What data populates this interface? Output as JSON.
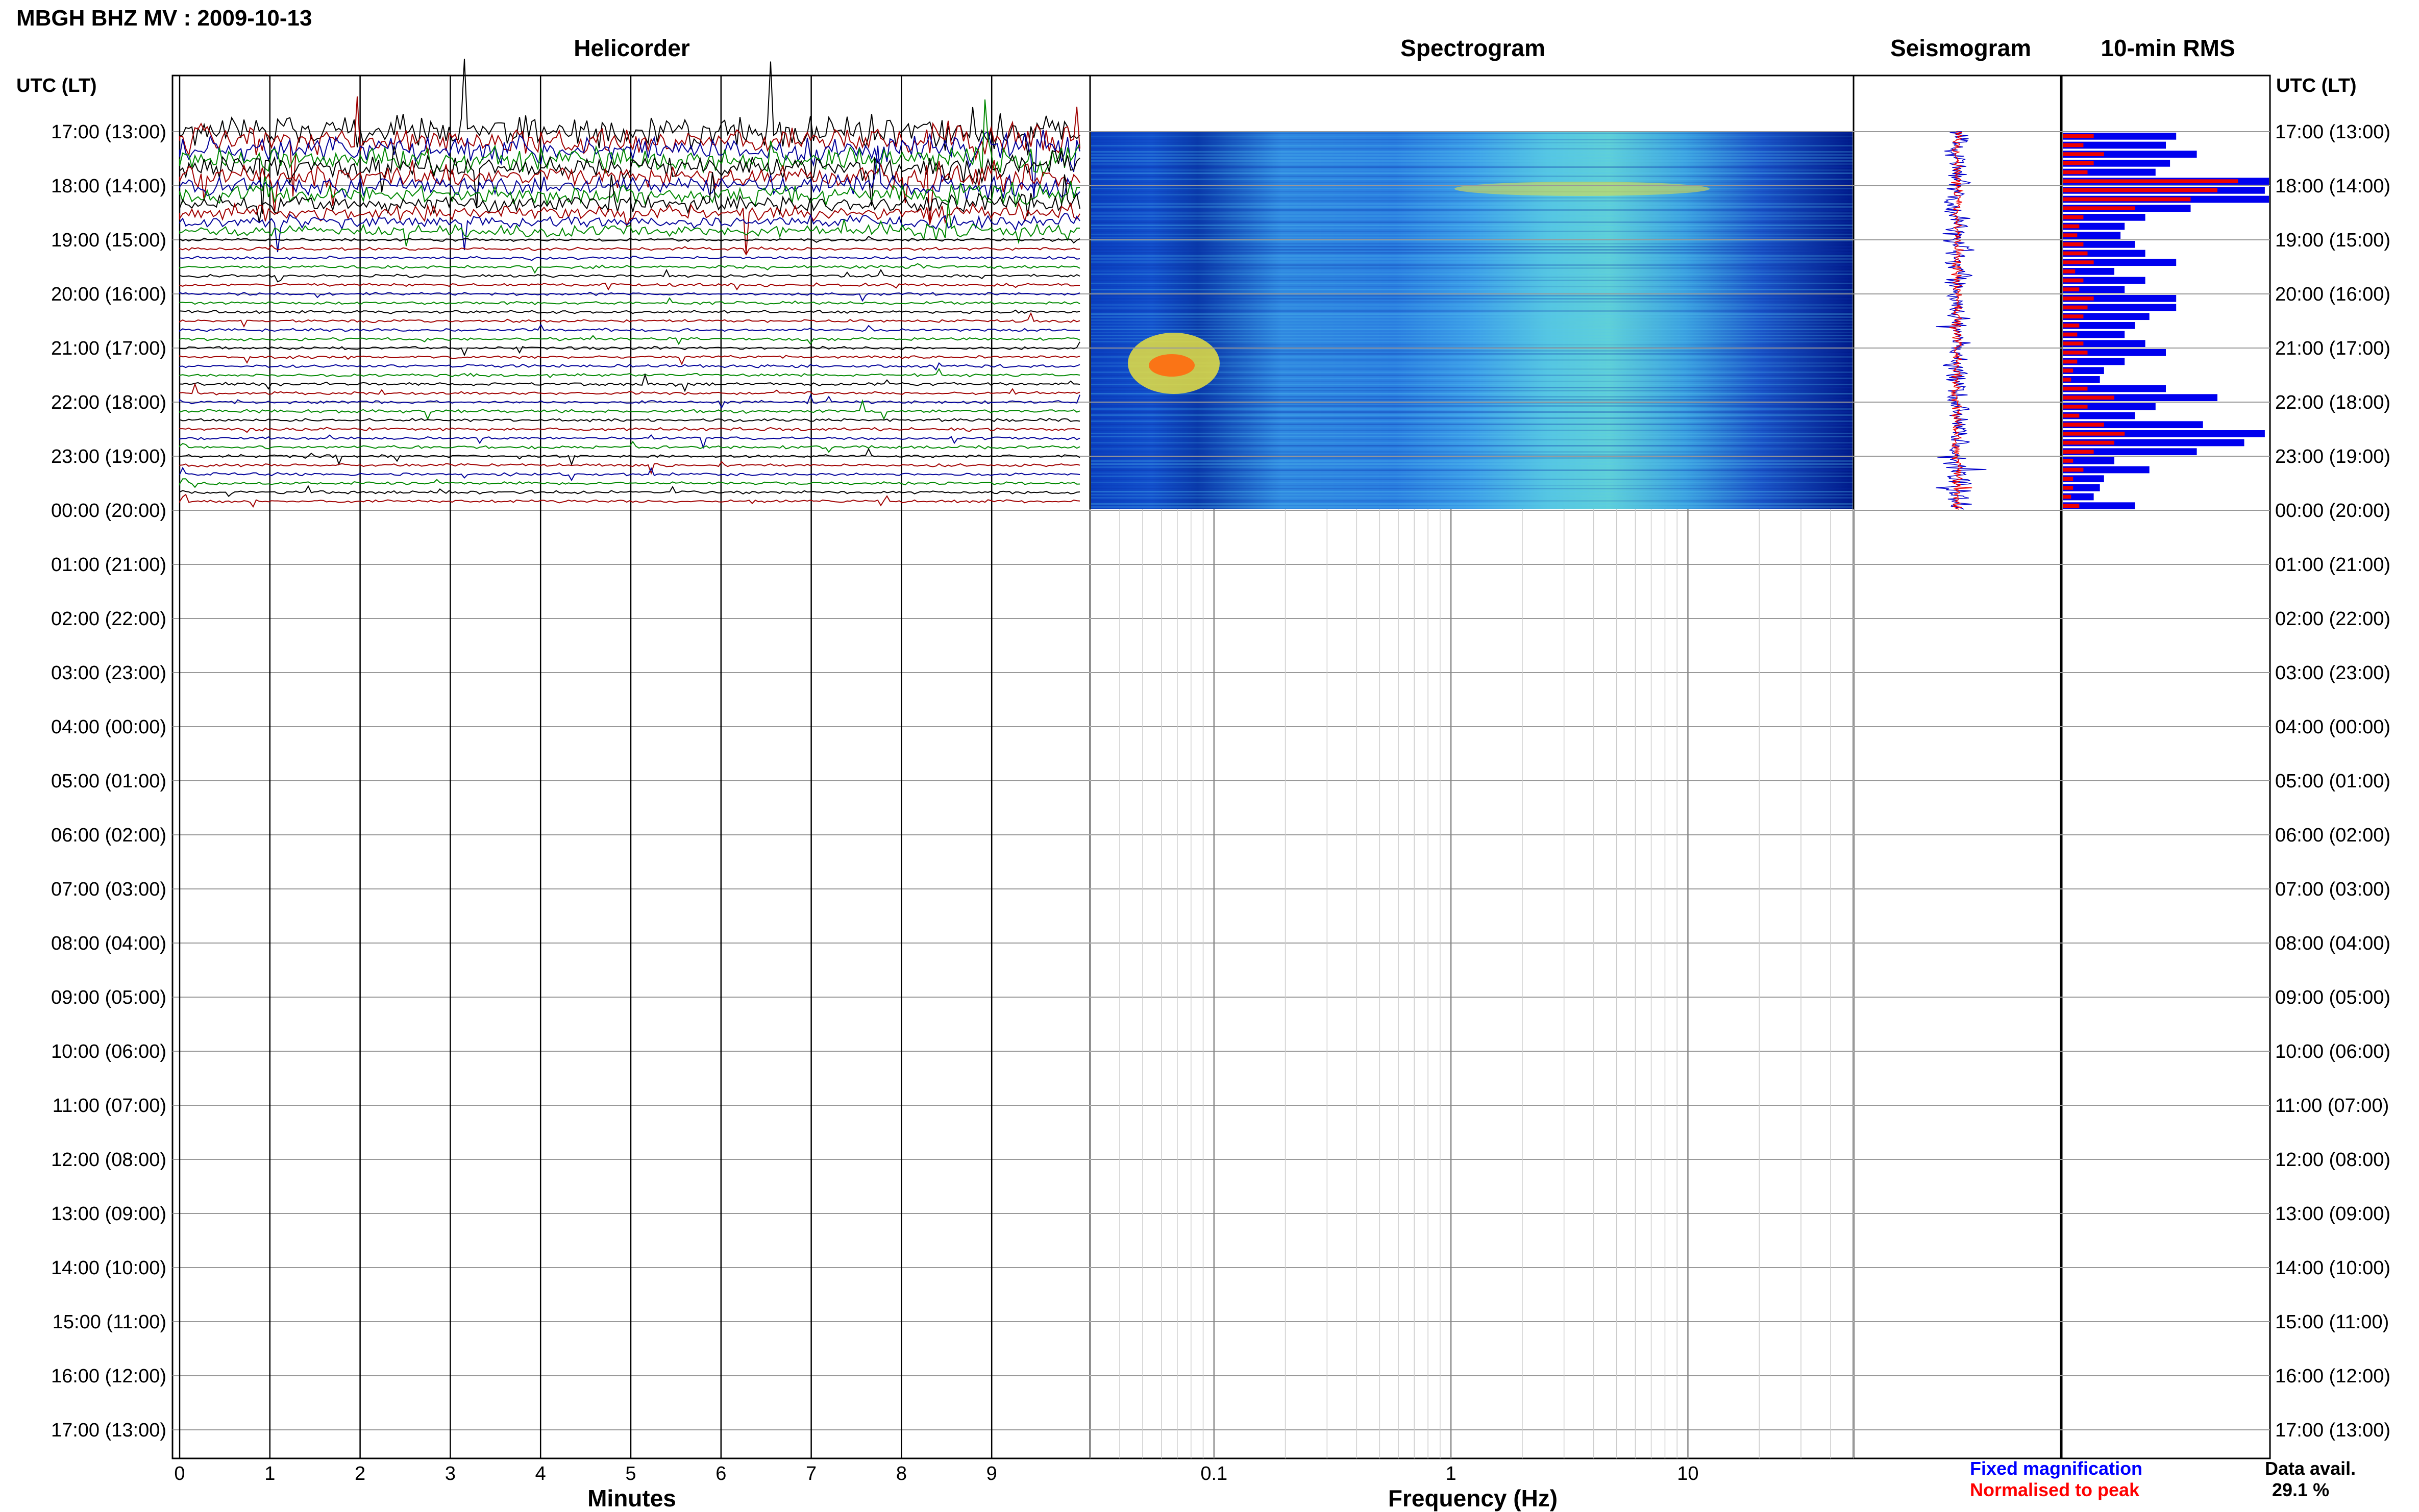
{
  "header": {
    "station_title": "MBGH BHZ MV : 2009-10-13"
  },
  "panels": {
    "helicorder": "Helicorder",
    "spectrogram": "Spectrogram",
    "seismogram": "Seismogram",
    "rms": "10-min RMS"
  },
  "axis": {
    "time_header_left": "UTC (LT)",
    "time_header_right": "UTC (LT)",
    "minutes_label": "Minutes",
    "frequency_label": "Frequency (Hz)"
  },
  "time_labels": [
    "17:00 (13:00)",
    "18:00 (14:00)",
    "19:00 (15:00)",
    "20:00 (16:00)",
    "21:00 (17:00)",
    "22:00 (18:00)",
    "23:00 (19:00)",
    "00:00 (20:00)",
    "01:00 (21:00)",
    "02:00 (22:00)",
    "03:00 (23:00)",
    "04:00 (00:00)",
    "05:00 (01:00)",
    "06:00 (02:00)",
    "07:00 (03:00)",
    "08:00 (04:00)",
    "09:00 (05:00)",
    "10:00 (06:00)",
    "11:00 (07:00)",
    "12:00 (08:00)",
    "13:00 (09:00)",
    "14:00 (10:00)",
    "15:00 (11:00)",
    "16:00 (12:00)",
    "17:00 (13:00)"
  ],
  "minute_ticks": [
    "0",
    "1",
    "2",
    "3",
    "4",
    "5",
    "6",
    "7",
    "8",
    "9"
  ],
  "frequency_ticks": [
    "0.1",
    "1",
    "10"
  ],
  "legend": {
    "fixed": "Fixed magnification",
    "normalised": "Normalised to peak",
    "fixed_color": "#0000ff",
    "normalised_color": "#ff0000"
  },
  "data_avail": {
    "label": "Data avail.",
    "value": "29.1 %"
  },
  "colors": {
    "trace_cycle": [
      "#000000",
      "#a00000",
      "#000099",
      "#008800"
    ],
    "rms_fixed": "#0000ee",
    "rms_normalised": "#ee0000"
  },
  "chart_data": {
    "type": "helicorder",
    "hours_with_data": 7,
    "rows_per_hour": 6,
    "minutes_range": [
      0,
      10
    ],
    "frequency_range_hz": [
      0.03,
      50
    ],
    "frequency_scale": "log",
    "rms_10min": {
      "fixed_magnification": [
        0.55,
        0.5,
        0.65,
        0.52,
        0.45,
        1.0,
        0.98,
        1.0,
        0.62,
        0.4,
        0.3,
        0.28,
        0.35,
        0.4,
        0.55,
        0.25,
        0.4,
        0.3,
        0.55,
        0.55,
        0.42,
        0.35,
        0.3,
        0.4,
        0.5,
        0.3,
        0.2,
        0.18,
        0.5,
        0.75,
        0.45,
        0.35,
        0.68,
        0.98,
        0.88,
        0.65,
        0.25,
        0.42,
        0.2,
        0.18,
        0.15,
        0.35
      ],
      "normalised_to_peak": [
        0.15,
        0.1,
        0.2,
        0.15,
        0.12,
        0.85,
        0.75,
        0.62,
        0.35,
        0.1,
        0.08,
        0.07,
        0.1,
        0.12,
        0.15,
        0.06,
        0.1,
        0.08,
        0.15,
        0.12,
        0.1,
        0.08,
        0.07,
        0.1,
        0.12,
        0.07,
        0.05,
        0.04,
        0.12,
        0.25,
        0.12,
        0.08,
        0.2,
        0.3,
        0.25,
        0.15,
        0.05,
        0.1,
        0.05,
        0.05,
        0.04,
        0.08
      ]
    },
    "spectrogram_peak_hz": [
      0.04,
      0.08
    ]
  }
}
